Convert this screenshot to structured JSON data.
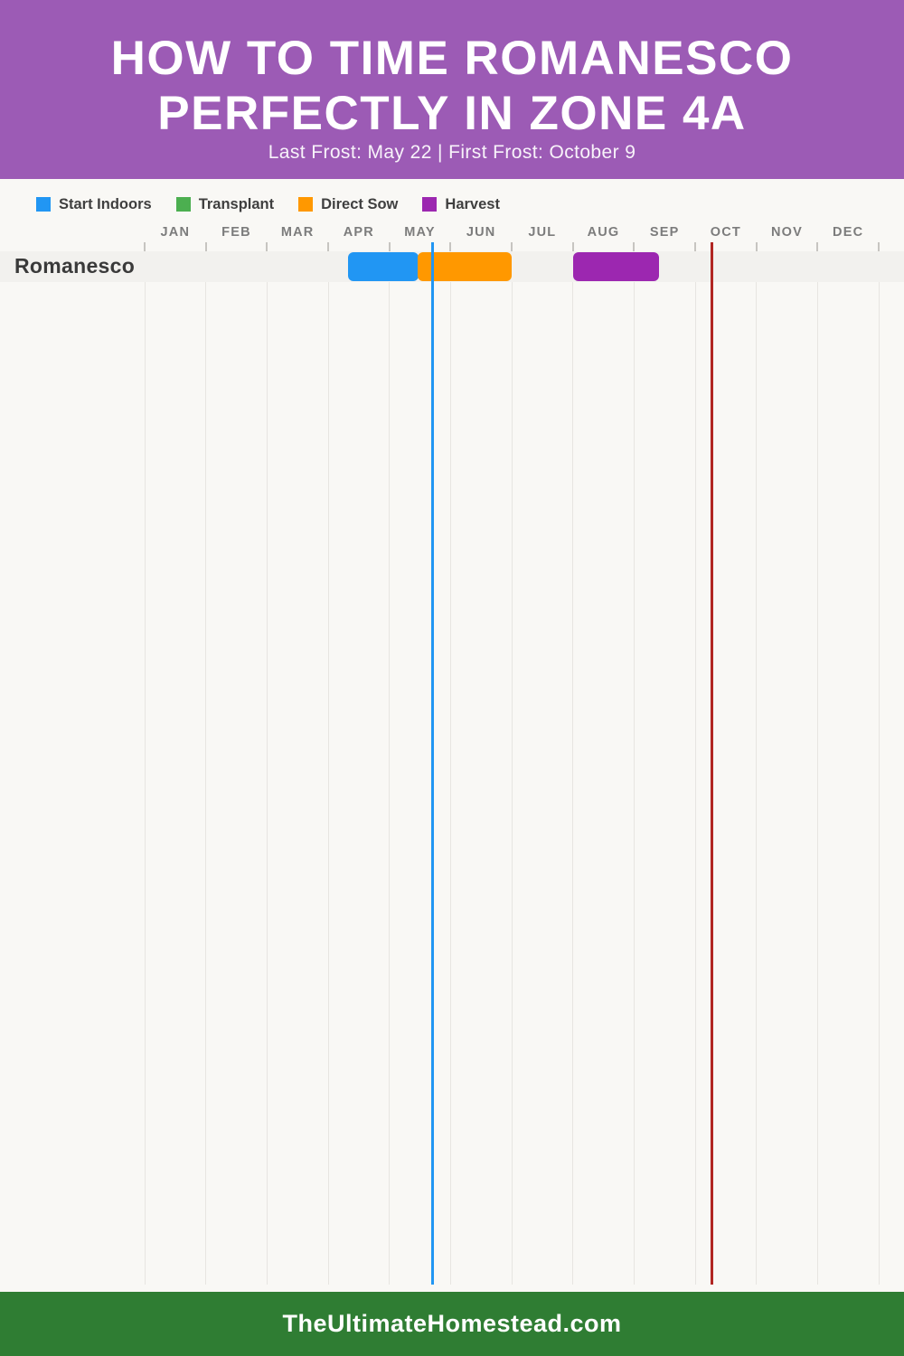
{
  "header": {
    "title_line1": "HOW TO TIME ROMANESCO",
    "title_line2": "PERFECTLY IN ZONE 4A",
    "subtitle": "Last Frost: May 22 | First Frost: October 9",
    "background_color": "#9C5BB5"
  },
  "legend": [
    {
      "label": "Start Indoors",
      "color": "#2196F3"
    },
    {
      "label": "Transplant",
      "color": "#4CAF50"
    },
    {
      "label": "Direct Sow",
      "color": "#FF9800"
    },
    {
      "label": "Harvest",
      "color": "#9C27B0"
    }
  ],
  "chart_data": {
    "type": "bar",
    "variant": "gantt-planting-calendar",
    "title": "How to Time Romanesco Perfectly in Zone 4A",
    "months": [
      "JAN",
      "FEB",
      "MAR",
      "APR",
      "MAY",
      "JUN",
      "JUL",
      "AUG",
      "SEP",
      "OCT",
      "NOV",
      "DEC"
    ],
    "x_range_months": 12,
    "grid": true,
    "legend_position": "top-left",
    "rows": [
      {
        "label": "Romanesco",
        "bars": [
          {
            "task": "Start Indoors",
            "color": "#2196F3",
            "start_month": 3.33,
            "end_month": 4.48,
            "start_date_approx": "Apr 10",
            "end_date_approx": "May 15"
          },
          {
            "task": "Direct Sow",
            "color": "#FF9800",
            "start_month": 4.46,
            "end_month": 6.0,
            "start_date_approx": "May 15",
            "end_date_approx": "Jun 30"
          },
          {
            "task": "Harvest",
            "color": "#9C27B0",
            "start_month": 7.0,
            "end_month": 8.41,
            "start_date_approx": "Aug 1",
            "end_date_approx": "Sep 13"
          }
        ]
      }
    ],
    "markers": [
      {
        "name": "Last Frost",
        "date": "May 22",
        "month_position": 4.71,
        "color": "#2196F3"
      },
      {
        "name": "First Frost",
        "date": "October 9",
        "month_position": 9.27,
        "color": "#B12622"
      }
    ],
    "row_band_color": "#F2F1EE",
    "gridline_color": "#E7E5E1"
  },
  "footer": {
    "text": "TheUltimateHomestead.com",
    "background_color": "#2F7D33"
  }
}
